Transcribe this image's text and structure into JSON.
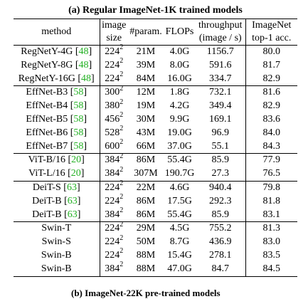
{
  "caption": "(a) Regular ImageNet-1K trained models",
  "columns": {
    "method": "method",
    "image_size_1": "image",
    "image_size_2": "size",
    "params": "#param.",
    "flops": "FLOPs",
    "throughput_1": "throughput",
    "throughput_2": "(image / s)",
    "acc_1": "ImageNet",
    "acc_2": "top-1 acc."
  },
  "groups": [
    [
      {
        "name": "RegNetY-4G",
        "cite": "48",
        "res": "224",
        "params": "21M",
        "flops": "4.0G",
        "throughput": "1156.7",
        "acc": "80.0"
      },
      {
        "name": "RegNetY-8G",
        "cite": "48",
        "res": "224",
        "params": "39M",
        "flops": "8.0G",
        "throughput": "591.6",
        "acc": "81.7"
      },
      {
        "name": "RegNetY-16G",
        "cite": "48",
        "res": "224",
        "params": "84M",
        "flops": "16.0G",
        "throughput": "334.7",
        "acc": "82.9"
      }
    ],
    [
      {
        "name": "EffNet-B3",
        "cite": "58",
        "res": "300",
        "params": "12M",
        "flops": "1.8G",
        "throughput": "732.1",
        "acc": "81.6"
      },
      {
        "name": "EffNet-B4",
        "cite": "58",
        "res": "380",
        "params": "19M",
        "flops": "4.2G",
        "throughput": "349.4",
        "acc": "82.9"
      },
      {
        "name": "EffNet-B5",
        "cite": "58",
        "res": "456",
        "params": "30M",
        "flops": "9.9G",
        "throughput": "169.1",
        "acc": "83.6"
      },
      {
        "name": "EffNet-B6",
        "cite": "58",
        "res": "528",
        "params": "43M",
        "flops": "19.0G",
        "throughput": "96.9",
        "acc": "84.0"
      },
      {
        "name": "EffNet-B7",
        "cite": "58",
        "res": "600",
        "params": "66M",
        "flops": "37.0G",
        "throughput": "55.1",
        "acc": "84.3"
      }
    ],
    [
      {
        "name": "ViT-B/16",
        "cite": "20",
        "res": "384",
        "params": "86M",
        "flops": "55.4G",
        "throughput": "85.9",
        "acc": "77.9"
      },
      {
        "name": "ViT-L/16",
        "cite": "20",
        "res": "384",
        "params": "307M",
        "flops": "190.7G",
        "throughput": "27.3",
        "acc": "76.5"
      }
    ],
    [
      {
        "name": "DeiT-S",
        "cite": "63",
        "res": "224",
        "params": "22M",
        "flops": "4.6G",
        "throughput": "940.4",
        "acc": "79.8"
      },
      {
        "name": "DeiT-B",
        "cite": "63",
        "res": "224",
        "params": "86M",
        "flops": "17.5G",
        "throughput": "292.3",
        "acc": "81.8"
      },
      {
        "name": "DeiT-B",
        "cite": "63",
        "res": "384",
        "params": "86M",
        "flops": "55.4G",
        "throughput": "85.9",
        "acc": "83.1"
      }
    ],
    [
      {
        "name": "Swin-T",
        "cite": "",
        "res": "224",
        "params": "29M",
        "flops": "4.5G",
        "throughput": "755.2",
        "acc": "81.3"
      },
      {
        "name": "Swin-S",
        "cite": "",
        "res": "224",
        "params": "50M",
        "flops": "8.7G",
        "throughput": "436.9",
        "acc": "83.0"
      },
      {
        "name": "Swin-B",
        "cite": "",
        "res": "224",
        "params": "88M",
        "flops": "15.4G",
        "throughput": "278.1",
        "acc": "83.5"
      },
      {
        "name": "Swin-B",
        "cite": "",
        "res": "384",
        "params": "88M",
        "flops": "47.0G",
        "throughput": "84.7",
        "acc": "84.5"
      }
    ]
  ],
  "res_exponent": "2",
  "next_caption": "(b) ImageNet-22K pre-trained models"
}
